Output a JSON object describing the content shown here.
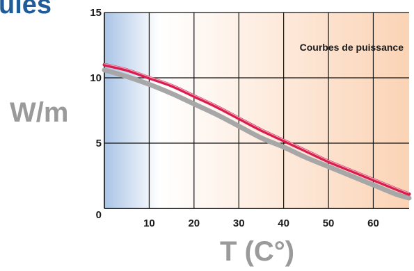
{
  "heading_fragment": "ules",
  "chart_data": {
    "type": "line",
    "title": "",
    "xlabel": "T (C°)",
    "ylabel": "W/m",
    "annotation": "Courbes de puissance",
    "xlim": [
      0,
      68
    ],
    "ylim": [
      0,
      15
    ],
    "x_ticks": [
      10,
      20,
      30,
      40,
      50,
      60
    ],
    "y_ticks": [
      0,
      5,
      10,
      15
    ],
    "grid": true,
    "background_gradient": [
      "#a9c4e6",
      "#ffffff",
      "#fbd3b5"
    ],
    "series": [
      {
        "color": "#d81e4f",
        "x": [
          0,
          5,
          10,
          15,
          20,
          25,
          30,
          35,
          40,
          45,
          50,
          55,
          60,
          65,
          68
        ],
        "y": [
          11.0,
          10.6,
          10.0,
          9.4,
          8.6,
          7.8,
          6.9,
          6.0,
          5.2,
          4.4,
          3.6,
          2.9,
          2.2,
          1.5,
          1.1
        ]
      },
      {
        "color": "#a7a7a7",
        "x": [
          0,
          5,
          10,
          15,
          20,
          25,
          30,
          35,
          40,
          45,
          50,
          55,
          60,
          65,
          68
        ],
        "y": [
          10.6,
          10.1,
          9.5,
          8.8,
          8.0,
          7.2,
          6.3,
          5.4,
          4.7,
          3.9,
          3.2,
          2.5,
          1.8,
          1.1,
          0.8
        ]
      }
    ]
  }
}
